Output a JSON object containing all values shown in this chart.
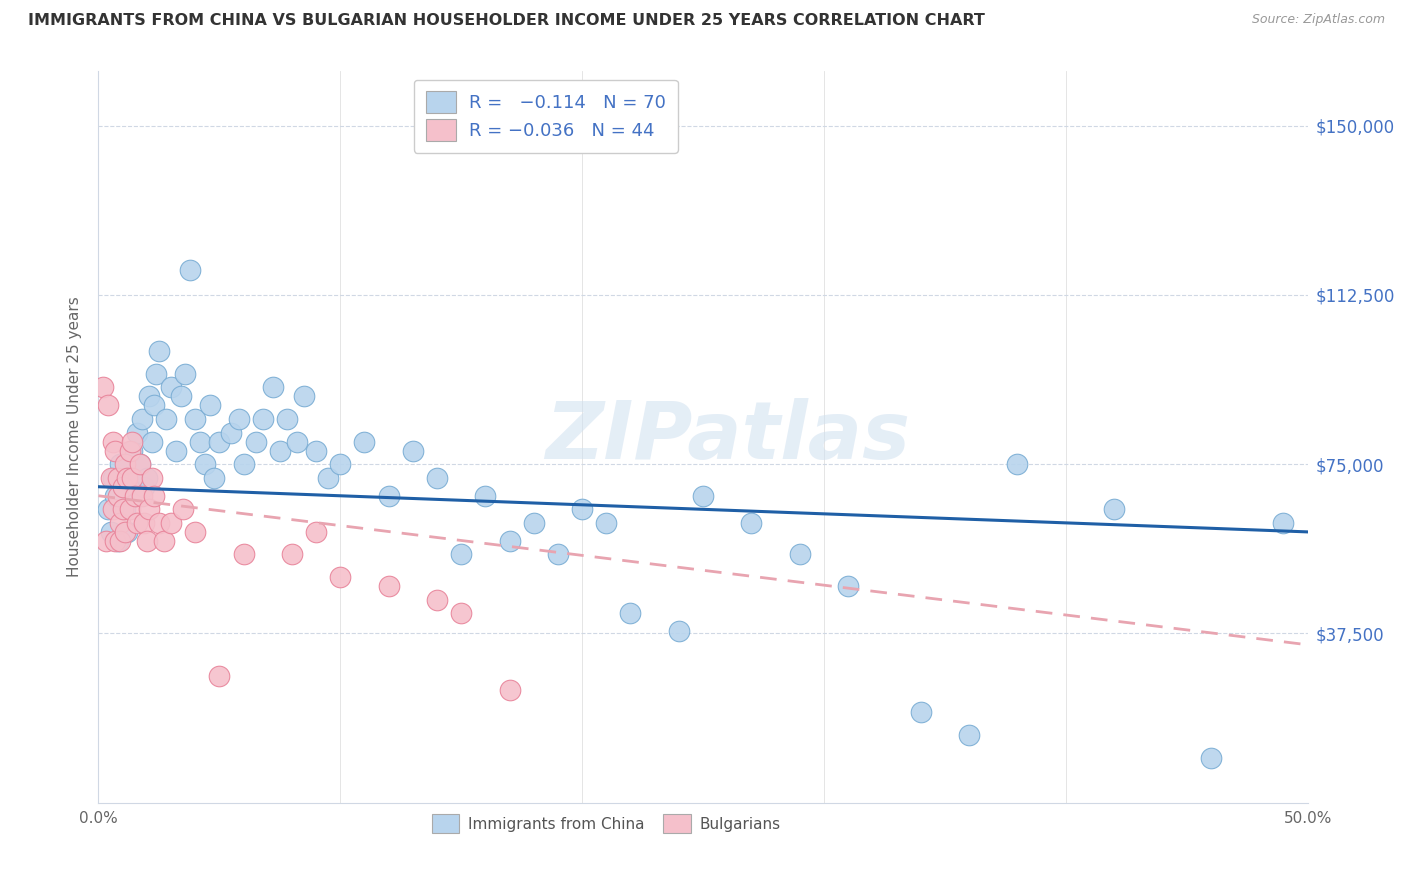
{
  "title": "IMMIGRANTS FROM CHINA VS BULGARIAN HOUSEHOLDER INCOME UNDER 25 YEARS CORRELATION CHART",
  "source": "Source: ZipAtlas.com",
  "ylabel": "Householder Income Under 25 years",
  "ytick_labels": [
    "$37,500",
    "$75,000",
    "$112,500",
    "$150,000"
  ],
  "ytick_values": [
    37500,
    75000,
    112500,
    150000
  ],
  "ymin": 0,
  "ymax": 162000,
  "xmin": 0.0,
  "xmax": 0.5,
  "watermark": "ZIPatlas",
  "china_color": "#b8d4ed",
  "china_edge": "#7aadd4",
  "bulgarian_color": "#f5c0cb",
  "bulgarian_edge": "#e8849a",
  "trend_china_color": "#1f5fa6",
  "trend_bulgarian_color": "#e8a4b0",
  "china_x": [
    0.004,
    0.005,
    0.006,
    0.007,
    0.008,
    0.009,
    0.01,
    0.011,
    0.012,
    0.013,
    0.014,
    0.015,
    0.016,
    0.017,
    0.018,
    0.019,
    0.02,
    0.021,
    0.022,
    0.023,
    0.024,
    0.025,
    0.028,
    0.03,
    0.032,
    0.034,
    0.036,
    0.038,
    0.04,
    0.042,
    0.044,
    0.046,
    0.048,
    0.05,
    0.055,
    0.058,
    0.06,
    0.065,
    0.068,
    0.072,
    0.075,
    0.078,
    0.082,
    0.085,
    0.09,
    0.095,
    0.1,
    0.11,
    0.12,
    0.13,
    0.14,
    0.15,
    0.16,
    0.17,
    0.18,
    0.19,
    0.2,
    0.21,
    0.22,
    0.24,
    0.25,
    0.27,
    0.29,
    0.31,
    0.34,
    0.36,
    0.38,
    0.42,
    0.46,
    0.49
  ],
  "china_y": [
    65000,
    60000,
    72000,
    68000,
    58000,
    75000,
    70000,
    65000,
    60000,
    72000,
    78000,
    68000,
    82000,
    75000,
    85000,
    70000,
    72000,
    90000,
    80000,
    88000,
    95000,
    100000,
    85000,
    92000,
    78000,
    90000,
    95000,
    118000,
    85000,
    80000,
    75000,
    88000,
    72000,
    80000,
    82000,
    85000,
    75000,
    80000,
    85000,
    92000,
    78000,
    85000,
    80000,
    90000,
    78000,
    72000,
    75000,
    80000,
    68000,
    78000,
    72000,
    55000,
    68000,
    58000,
    62000,
    55000,
    65000,
    62000,
    42000,
    38000,
    68000,
    62000,
    55000,
    48000,
    20000,
    15000,
    75000,
    65000,
    10000,
    62000
  ],
  "bulgarian_x": [
    0.002,
    0.003,
    0.004,
    0.005,
    0.006,
    0.006,
    0.007,
    0.007,
    0.008,
    0.008,
    0.009,
    0.009,
    0.01,
    0.01,
    0.011,
    0.011,
    0.012,
    0.013,
    0.013,
    0.014,
    0.014,
    0.015,
    0.016,
    0.017,
    0.018,
    0.019,
    0.02,
    0.021,
    0.022,
    0.023,
    0.025,
    0.027,
    0.03,
    0.035,
    0.04,
    0.05,
    0.06,
    0.08,
    0.09,
    0.1,
    0.12,
    0.14,
    0.15,
    0.17
  ],
  "bulgarian_y": [
    92000,
    58000,
    88000,
    72000,
    80000,
    65000,
    78000,
    58000,
    68000,
    72000,
    62000,
    58000,
    70000,
    65000,
    75000,
    60000,
    72000,
    78000,
    65000,
    72000,
    80000,
    68000,
    62000,
    75000,
    68000,
    62000,
    58000,
    65000,
    72000,
    68000,
    62000,
    58000,
    62000,
    65000,
    60000,
    28000,
    55000,
    55000,
    60000,
    50000,
    48000,
    45000,
    42000,
    25000
  ]
}
